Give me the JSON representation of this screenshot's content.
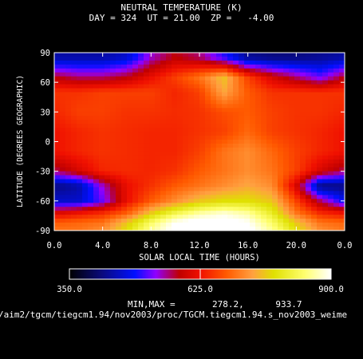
{
  "chart_data": {
    "type": "heatmap",
    "title": "NEUTRAL TEMPERATURE (K)",
    "subtitle": "DAY = 324  UT = 21.00  ZP =   -4.00",
    "xlabel": "SOLAR LOCAL TIME (HOURS)",
    "ylabel": "LATITUDE (DEGREES GEOGRAPHIC)",
    "xlim": [
      0,
      24
    ],
    "ylim": [
      -90,
      90
    ],
    "x_ticks": [
      "0.0",
      "4.0",
      "8.0",
      "12.0",
      "16.0",
      "20.0",
      "0.0"
    ],
    "y_ticks": [
      "90",
      "60",
      "30",
      "0",
      "-30",
      "-60",
      "-90"
    ],
    "colorbar": {
      "min": 350.0,
      "max": 900.0,
      "labels": [
        "350.0",
        "625.0",
        "900.0"
      ]
    },
    "min_max_text": "MIN,MAX =       278.2,      933.7",
    "path_text": "/aim2/tgcm/tiegcm1.94/nov2003/proc/TGCM.tiegcm1.94.s_nov2003_weime",
    "approx_field": [
      {
        "lat": 85,
        "values": [
          440,
          440,
          440,
          460,
          540,
          580,
          560,
          500,
          430,
          420,
          420,
          430,
          440
        ]
      },
      {
        "lat": 65,
        "values": [
          580,
          560,
          560,
          580,
          620,
          660,
          700,
          760,
          660,
          600,
          560,
          520,
          580
        ]
      },
      {
        "lat": 50,
        "values": [
          650,
          650,
          660,
          660,
          660,
          640,
          660,
          740,
          680,
          650,
          650,
          650,
          650
        ]
      },
      {
        "lat": 30,
        "values": [
          640,
          660,
          660,
          650,
          650,
          645,
          650,
          670,
          680,
          660,
          650,
          650,
          640
        ]
      },
      {
        "lat": 10,
        "values": [
          625,
          640,
          650,
          645,
          640,
          640,
          650,
          660,
          690,
          660,
          650,
          640,
          625
        ]
      },
      {
        "lat": -10,
        "values": [
          625,
          640,
          650,
          645,
          640,
          640,
          660,
          700,
          720,
          690,
          660,
          640,
          625
        ]
      },
      {
        "lat": -30,
        "values": [
          560,
          600,
          640,
          645,
          640,
          650,
          680,
          700,
          720,
          700,
          660,
          600,
          560
        ]
      },
      {
        "lat": -45,
        "values": [
          420,
          440,
          540,
          620,
          650,
          680,
          700,
          720,
          740,
          720,
          600,
          420,
          420
        ]
      },
      {
        "lat": -60,
        "values": [
          460,
          460,
          520,
          620,
          680,
          720,
          760,
          780,
          780,
          760,
          660,
          560,
          480
        ]
      },
      {
        "lat": -72,
        "values": [
          600,
          620,
          640,
          680,
          760,
          820,
          860,
          880,
          860,
          800,
          700,
          640,
          620
        ]
      },
      {
        "lat": -82,
        "values": [
          680,
          690,
          700,
          760,
          840,
          900,
          920,
          920,
          900,
          840,
          760,
          700,
          690
        ]
      },
      {
        "lat": -90,
        "values": [
          700,
          700,
          720,
          780,
          860,
          910,
          930,
          930,
          910,
          860,
          780,
          720,
          700
        ]
      }
    ]
  }
}
